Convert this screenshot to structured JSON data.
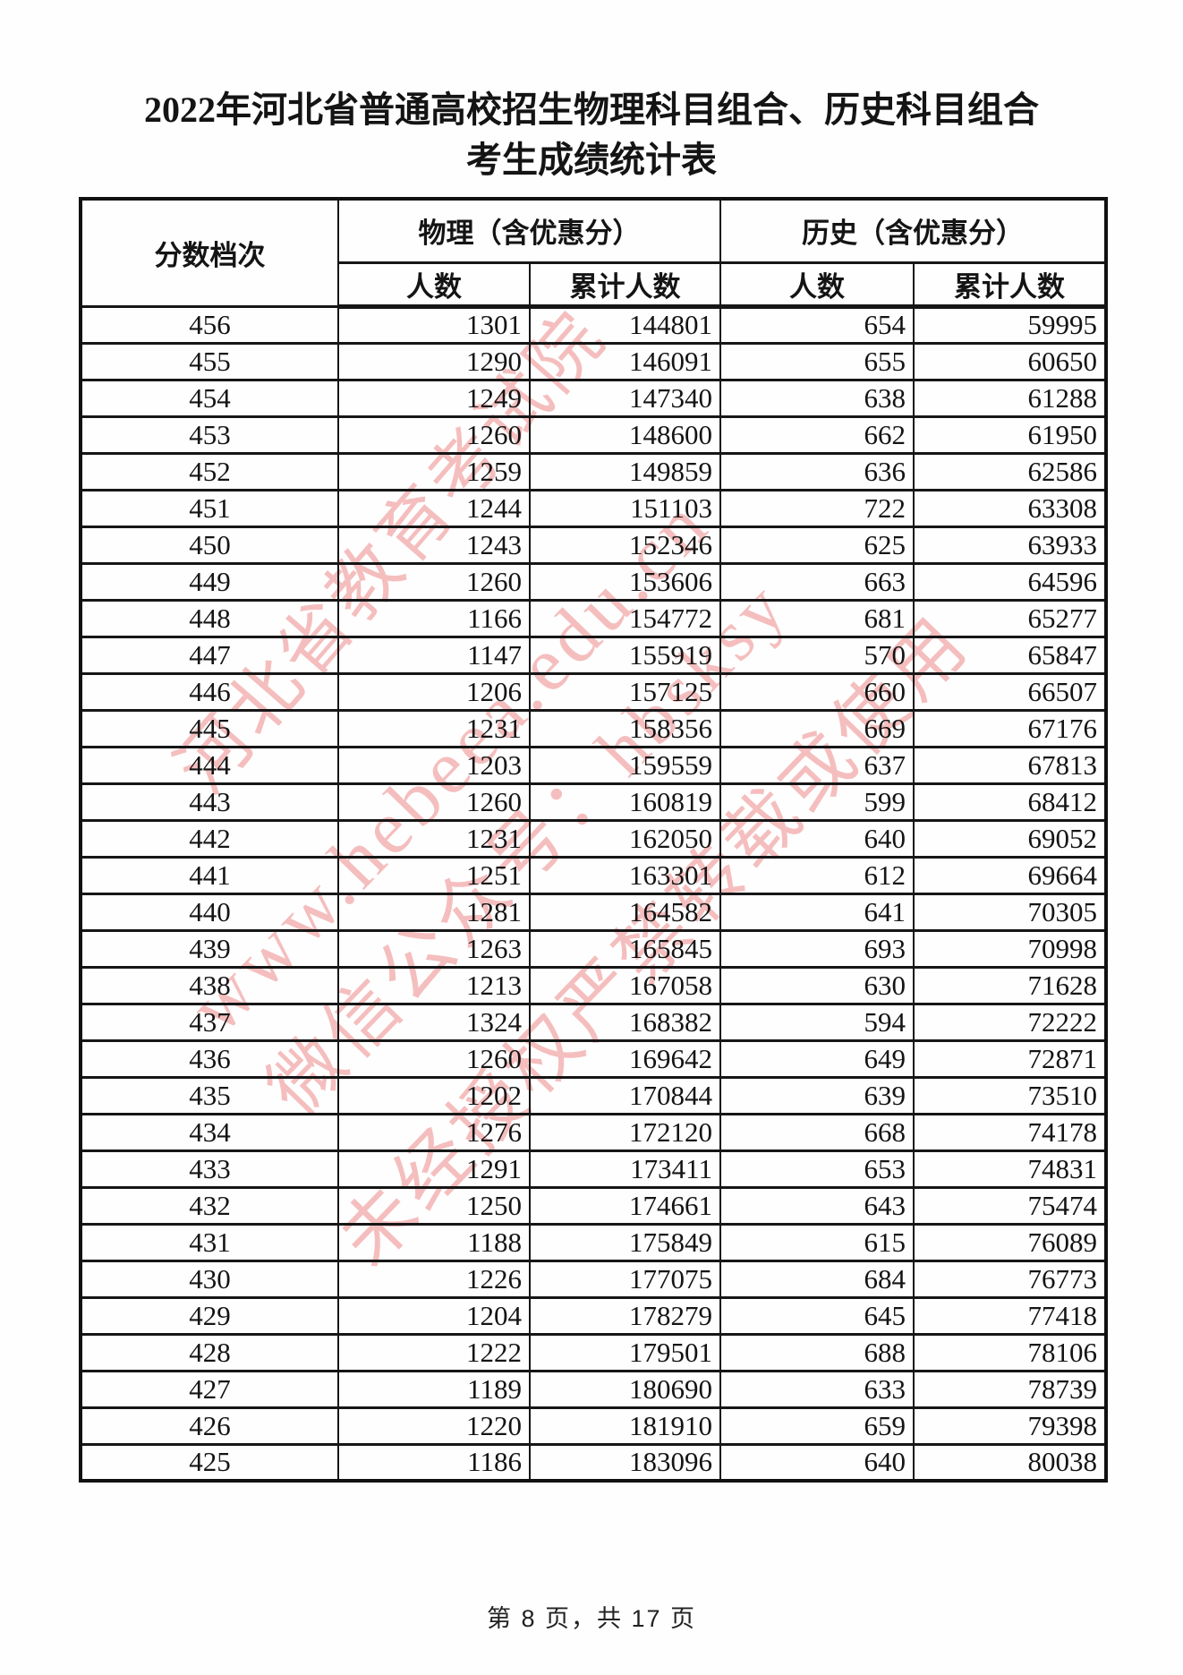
{
  "page": {
    "title_line1": "2022年河北省普通高校招生物理科目组合、历史科目组合",
    "title_line2": "考生成绩统计表",
    "footer": "第 8 页，共 17 页"
  },
  "table": {
    "header": {
      "score_band": "分数档次",
      "physics_group": "物理（含优惠分）",
      "history_group": "历史（含优惠分）",
      "count_label": "人数",
      "cumulative_label": "累计人数"
    },
    "rows": [
      [
        456,
        1301,
        144801,
        654,
        59995
      ],
      [
        455,
        1290,
        146091,
        655,
        60650
      ],
      [
        454,
        1249,
        147340,
        638,
        61288
      ],
      [
        453,
        1260,
        148600,
        662,
        61950
      ],
      [
        452,
        1259,
        149859,
        636,
        62586
      ],
      [
        451,
        1244,
        151103,
        722,
        63308
      ],
      [
        450,
        1243,
        152346,
        625,
        63933
      ],
      [
        449,
        1260,
        153606,
        663,
        64596
      ],
      [
        448,
        1166,
        154772,
        681,
        65277
      ],
      [
        447,
        1147,
        155919,
        570,
        65847
      ],
      [
        446,
        1206,
        157125,
        660,
        66507
      ],
      [
        445,
        1231,
        158356,
        669,
        67176
      ],
      [
        444,
        1203,
        159559,
        637,
        67813
      ],
      [
        443,
        1260,
        160819,
        599,
        68412
      ],
      [
        442,
        1231,
        162050,
        640,
        69052
      ],
      [
        441,
        1251,
        163301,
        612,
        69664
      ],
      [
        440,
        1281,
        164582,
        641,
        70305
      ],
      [
        439,
        1263,
        165845,
        693,
        70998
      ],
      [
        438,
        1213,
        167058,
        630,
        71628
      ],
      [
        437,
        1324,
        168382,
        594,
        72222
      ],
      [
        436,
        1260,
        169642,
        649,
        72871
      ],
      [
        435,
        1202,
        170844,
        639,
        73510
      ],
      [
        434,
        1276,
        172120,
        668,
        74178
      ],
      [
        433,
        1291,
        173411,
        653,
        74831
      ],
      [
        432,
        1250,
        174661,
        643,
        75474
      ],
      [
        431,
        1188,
        175849,
        615,
        76089
      ],
      [
        430,
        1226,
        177075,
        684,
        76773
      ],
      [
        429,
        1204,
        178279,
        645,
        77418
      ],
      [
        428,
        1222,
        179501,
        688,
        78106
      ],
      [
        427,
        1189,
        180690,
        633,
        78739
      ],
      [
        426,
        1220,
        181910,
        659,
        79398
      ],
      [
        425,
        1186,
        183096,
        640,
        80038
      ]
    ]
  },
  "watermark": {
    "color": "#ee8b8b",
    "lines": [
      "河北省教育考试院",
      "www.hebeea.edu.cn",
      "微信公众号：hbsksy",
      "未经授权严禁转载或使用"
    ]
  }
}
